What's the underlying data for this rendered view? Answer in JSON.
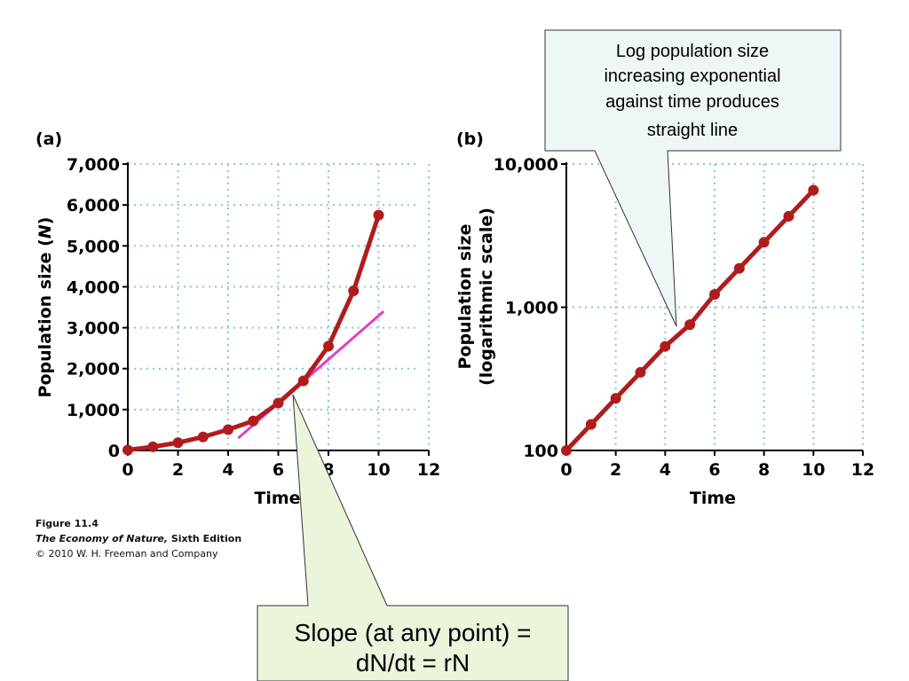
{
  "chart_data": [
    {
      "type": "line",
      "panel_label": "(a)",
      "xlabel": "Time",
      "ylabel": "Population size (N)",
      "xlim": [
        0,
        12
      ],
      "ylim": [
        0,
        7000
      ],
      "x_ticks": [
        0,
        2,
        4,
        6,
        8,
        10,
        12
      ],
      "y_ticks": [
        0,
        1000,
        2000,
        3000,
        4000,
        5000,
        6000,
        7000
      ],
      "y_tick_labels": [
        "0",
        "1,000",
        "2,000",
        "3,000",
        "4,000",
        "5,000",
        "6,000",
        "7,000"
      ],
      "grid": true,
      "series": [
        {
          "x": [
            0,
            1,
            2,
            3,
            4,
            5,
            6,
            7,
            8,
            9,
            10
          ],
          "y": [
            10,
            90,
            190,
            330,
            510,
            720,
            1160,
            1700,
            2550,
            3900,
            5750
          ],
          "color": "#b01c1c"
        }
      ],
      "tangent_line": {
        "x": [
          4.4,
          10.2
        ],
        "y": [
          300,
          3400
        ],
        "color": "#e040c8"
      }
    },
    {
      "type": "line",
      "panel_label": "(b)",
      "xlabel": "Time",
      "ylabel_lines": [
        "Population size",
        "(logarithmic scale)"
      ],
      "xlim": [
        0,
        12
      ],
      "ylim": [
        100,
        10000
      ],
      "yscale": "log",
      "x_ticks": [
        0,
        2,
        4,
        6,
        8,
        10,
        12
      ],
      "y_ticks": [
        100,
        1000,
        10000
      ],
      "y_tick_labels": [
        "100",
        "1,000",
        "10,000"
      ],
      "grid": true,
      "series": [
        {
          "x": [
            0,
            1,
            2,
            3,
            4,
            5,
            6,
            7,
            8,
            9,
            10
          ],
          "y": [
            100,
            152,
            231,
            351,
            533,
            756,
            1230,
            1870,
            2840,
            4320,
            6570
          ],
          "color": "#b01c1c"
        }
      ]
    }
  ],
  "caption": {
    "line1": "Figure 11.4",
    "line2_italic": "The Economy of Nature,",
    "line2_rest": " Sixth Edition",
    "line3": "© 2010 W. H. Freeman and Company"
  },
  "callout_log": {
    "lines": [
      "Log population size",
      "increasing exponential",
      "against time produces",
      "straight line"
    ],
    "fill": "#eef6f8"
  },
  "callout_slope": {
    "lines": [
      "Slope (at any point) =",
      "dN/dt = rN"
    ],
    "fill": "#eaf5dc"
  },
  "colors": {
    "series": "#b01c1c",
    "tangent": "#e040c8",
    "grid": "#8cc4dc"
  }
}
